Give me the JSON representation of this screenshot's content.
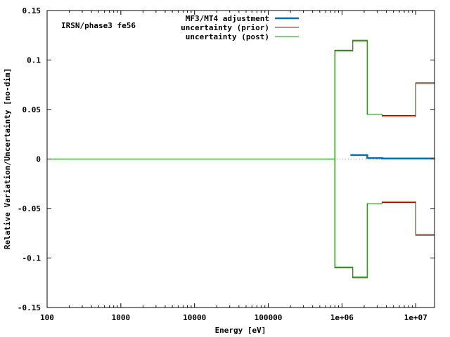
{
  "chart_data": {
    "type": "line",
    "annotation": "IRSN/phase3 fe56",
    "xlabel": "Energy [eV]",
    "ylabel": "Relative Variation/Uncertainty [no-dim]",
    "x_scale": "log",
    "xlim": [
      100,
      18000000
    ],
    "ylim": [
      -0.15,
      0.15
    ],
    "x_ticks": [
      {
        "value": 100,
        "label": "100"
      },
      {
        "value": 1000,
        "label": "1000"
      },
      {
        "value": 10000,
        "label": "10000"
      },
      {
        "value": 100000,
        "label": "100000"
      },
      {
        "value": 1000000,
        "label": "1e+06"
      },
      {
        "value": 10000000,
        "label": "1e+07"
      }
    ],
    "y_ticks": [
      {
        "value": 0.15,
        "label": "0.15"
      },
      {
        "value": 0.1,
        "label": "0.1"
      },
      {
        "value": 0.05,
        "label": "0.05"
      },
      {
        "value": 0,
        "label": "0"
      },
      {
        "value": -0.05,
        "label": "-0.05"
      },
      {
        "value": -0.1,
        "label": "-0.1"
      },
      {
        "value": -0.15,
        "label": "-0.15"
      }
    ],
    "legend_position": "top-center",
    "zero_line": "dotted",
    "series": [
      {
        "name": "MF3/MT4 adjustment",
        "color": "#0072bd",
        "line_width": "thick",
        "style": "step",
        "edges": [
          1300000,
          2200000,
          3500000,
          18000000
        ],
        "values": [
          0.004,
          0.001,
          0.0005
        ]
      },
      {
        "name": "uncertainty (prior)",
        "color": "#c00000",
        "line_width": "thin",
        "style": "step",
        "mirrored": true,
        "edges": [
          100,
          800000,
          1400000,
          2200000,
          3500000,
          10000000,
          18000000
        ],
        "values": [
          0,
          0.11,
          0.12,
          0.045,
          0.044,
          0.077
        ]
      },
      {
        "name": "uncertainty (post)",
        "color": "#00a000",
        "line_width": "thin",
        "style": "step",
        "mirrored": true,
        "edges": [
          100,
          800000,
          1400000,
          2200000,
          3500000,
          10000000,
          18000000
        ],
        "values": [
          0,
          0.109,
          0.119,
          0.045,
          0.043,
          0.076
        ]
      }
    ]
  }
}
